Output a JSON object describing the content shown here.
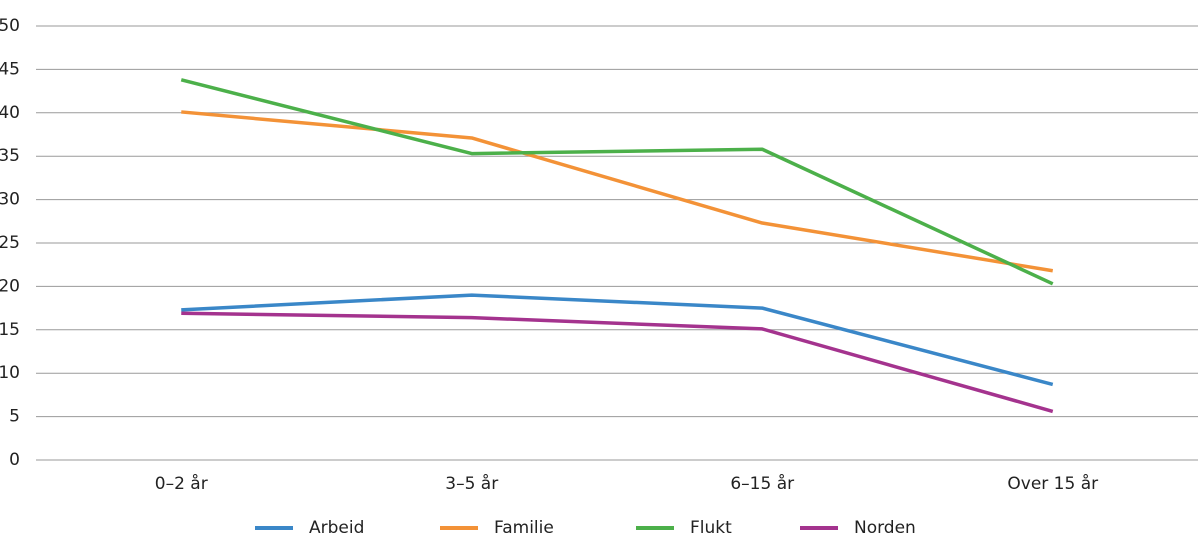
{
  "chart_data": {
    "type": "line",
    "categories": [
      "0–2 år",
      "3–5 år",
      "6–15 år",
      "Over 15 år"
    ],
    "series": [
      {
        "name": "Arbeid",
        "color": "#3a87c8",
        "values": [
          17.3,
          19.0,
          17.5,
          8.7
        ]
      },
      {
        "name": "Familie",
        "color": "#f39237",
        "values": [
          40.1,
          37.1,
          27.3,
          21.8
        ]
      },
      {
        "name": "Flukt",
        "color": "#4cb04a",
        "values": [
          43.8,
          35.3,
          35.8,
          20.3
        ]
      },
      {
        "name": "Norden",
        "color": "#a4338e",
        "values": [
          16.9,
          16.4,
          15.1,
          5.6
        ]
      }
    ],
    "ylim": [
      0,
      50
    ],
    "yticks": [
      0,
      5,
      10,
      15,
      20,
      25,
      30,
      35,
      40,
      45,
      50
    ],
    "grid": true,
    "legend": "bottom"
  }
}
